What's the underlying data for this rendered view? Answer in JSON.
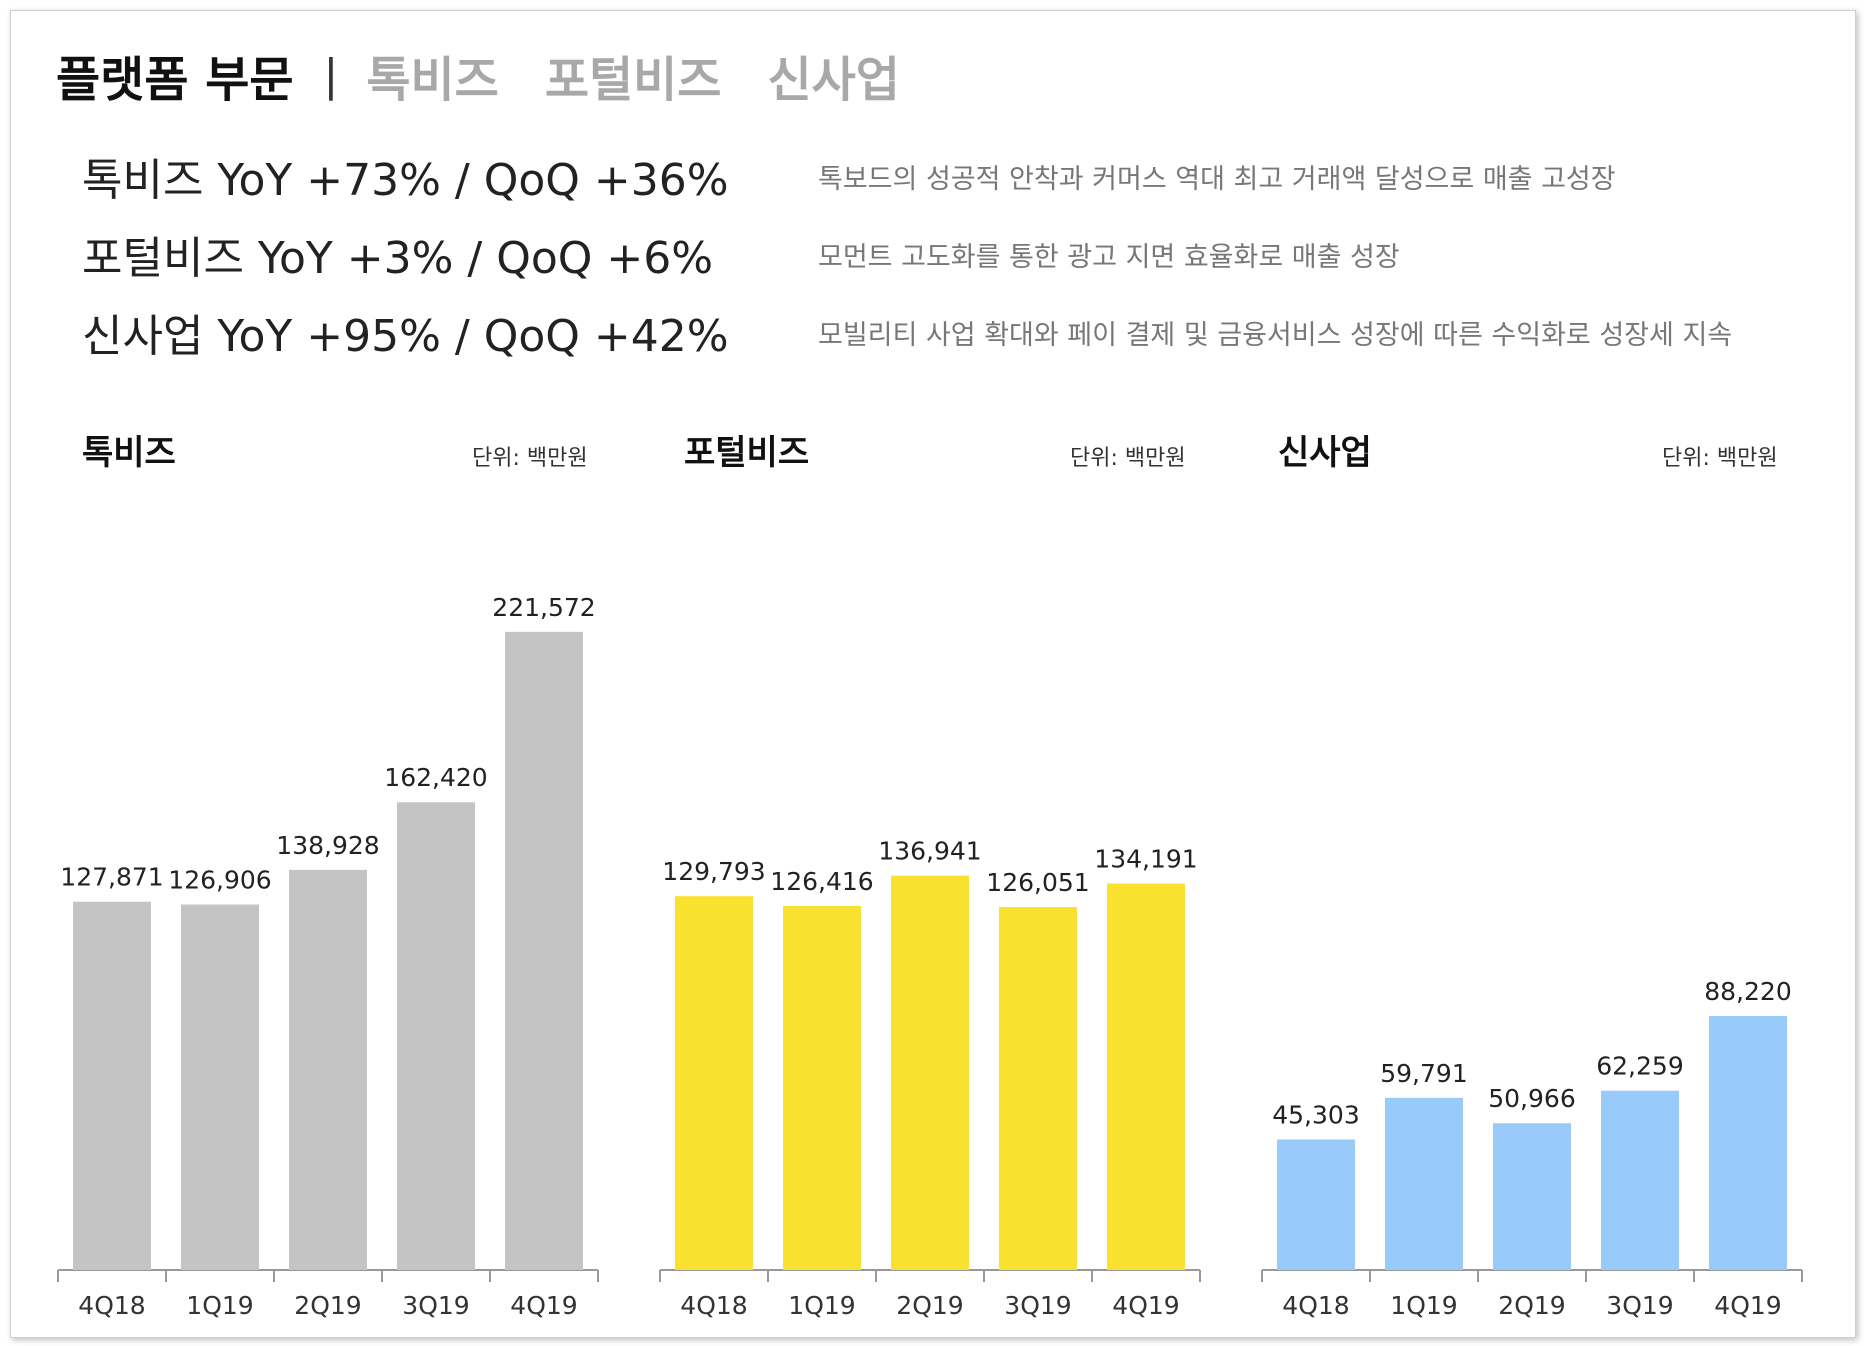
{
  "header": {
    "title": "플랫폼 부문",
    "separator": "|",
    "tabs": [
      "톡비즈",
      "포털비즈",
      "신사업"
    ]
  },
  "summary": [
    {
      "line": "톡비즈  YoY +73% / QoQ +36%",
      "desc": "톡보드의 성공적 안착과 커머스 역대 최고 거래액 달성으로 매출 고성장"
    },
    {
      "line": "포털비즈  YoY +3% / QoQ +6%",
      "desc": "모먼트 고도화를 통한 광고 지면 효율화로 매출 성장"
    },
    {
      "line": "신사업  YoY +95% / QoQ +42%",
      "desc": "모빌리티 사업 확대와 페이 결제 및 금융서비스 성장에 따른 수익화로 성장세 지속"
    }
  ],
  "colors": {
    "talk": "#c4c4c4",
    "portal": "#f9e130",
    "new": "#99cbfa",
    "axis": "#999999"
  },
  "chart_data": [
    {
      "type": "bar",
      "title": "톡비즈",
      "unit": "단위: 백만원",
      "categories": [
        "4Q18",
        "1Q19",
        "2Q19",
        "3Q19",
        "4Q19"
      ],
      "values": [
        127871,
        126906,
        138928,
        162420,
        221572
      ],
      "value_labels": [
        "127,871",
        "126,906",
        "138,928",
        "162,420",
        "221,572"
      ],
      "color": "#c4c4c4"
    },
    {
      "type": "bar",
      "title": "포털비즈",
      "unit": "단위: 백만원",
      "categories": [
        "4Q18",
        "1Q19",
        "2Q19",
        "3Q19",
        "4Q19"
      ],
      "values": [
        129793,
        126416,
        136941,
        126051,
        134191
      ],
      "value_labels": [
        "129,793",
        "126,416",
        "136,941",
        "126,051",
        "134,191"
      ],
      "color": "#f9e130"
    },
    {
      "type": "bar",
      "title": "신사업",
      "unit": "단위: 백만원",
      "categories": [
        "4Q18",
        "1Q19",
        "2Q19",
        "3Q19",
        "4Q19"
      ],
      "values": [
        45303,
        59791,
        50966,
        62259,
        88220
      ],
      "value_labels": [
        "45,303",
        "59,791",
        "50,966",
        "62,259",
        "88,220"
      ],
      "color": "#99cbfa"
    }
  ]
}
